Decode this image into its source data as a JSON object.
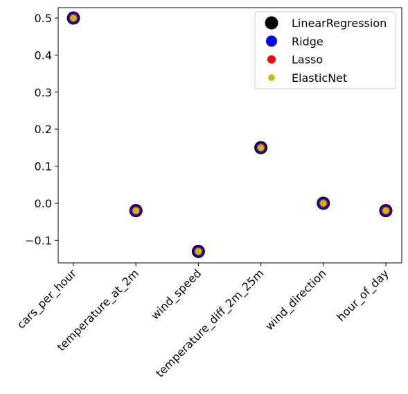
{
  "chart_data": {
    "type": "scatter",
    "title": "",
    "xlabel": "",
    "ylabel": "",
    "categories": [
      "cars_per_hour",
      "temperature_at_2m",
      "wind_speed",
      "temperature_diff_2m_25m",
      "wind_direction",
      "hour_of_day"
    ],
    "ylim": [
      -0.16,
      0.53
    ],
    "yticks": [
      -0.1,
      0.0,
      0.1,
      0.2,
      0.3,
      0.4,
      0.5
    ],
    "ytick_labels": [
      "−0.1",
      "0.0",
      "0.1",
      "0.2",
      "0.3",
      "0.4",
      "0.5"
    ],
    "grid": false,
    "legend_position": "top-right",
    "series": [
      {
        "name": "LinearRegression",
        "color": "#000000",
        "values": [
          0.5,
          -0.02,
          -0.13,
          0.15,
          0.0,
          -0.02
        ]
      },
      {
        "name": "Ridge",
        "color": "#0000ff",
        "values": [
          0.5,
          -0.02,
          -0.13,
          0.15,
          0.0,
          -0.02
        ]
      },
      {
        "name": "Lasso",
        "color": "#ff0000",
        "values": [
          0.5,
          -0.02,
          -0.13,
          0.15,
          0.0,
          -0.02
        ]
      },
      {
        "name": "ElasticNet",
        "color": "#bfbf00",
        "values": [
          0.5,
          -0.02,
          -0.13,
          0.15,
          0.0,
          -0.02
        ]
      }
    ]
  }
}
